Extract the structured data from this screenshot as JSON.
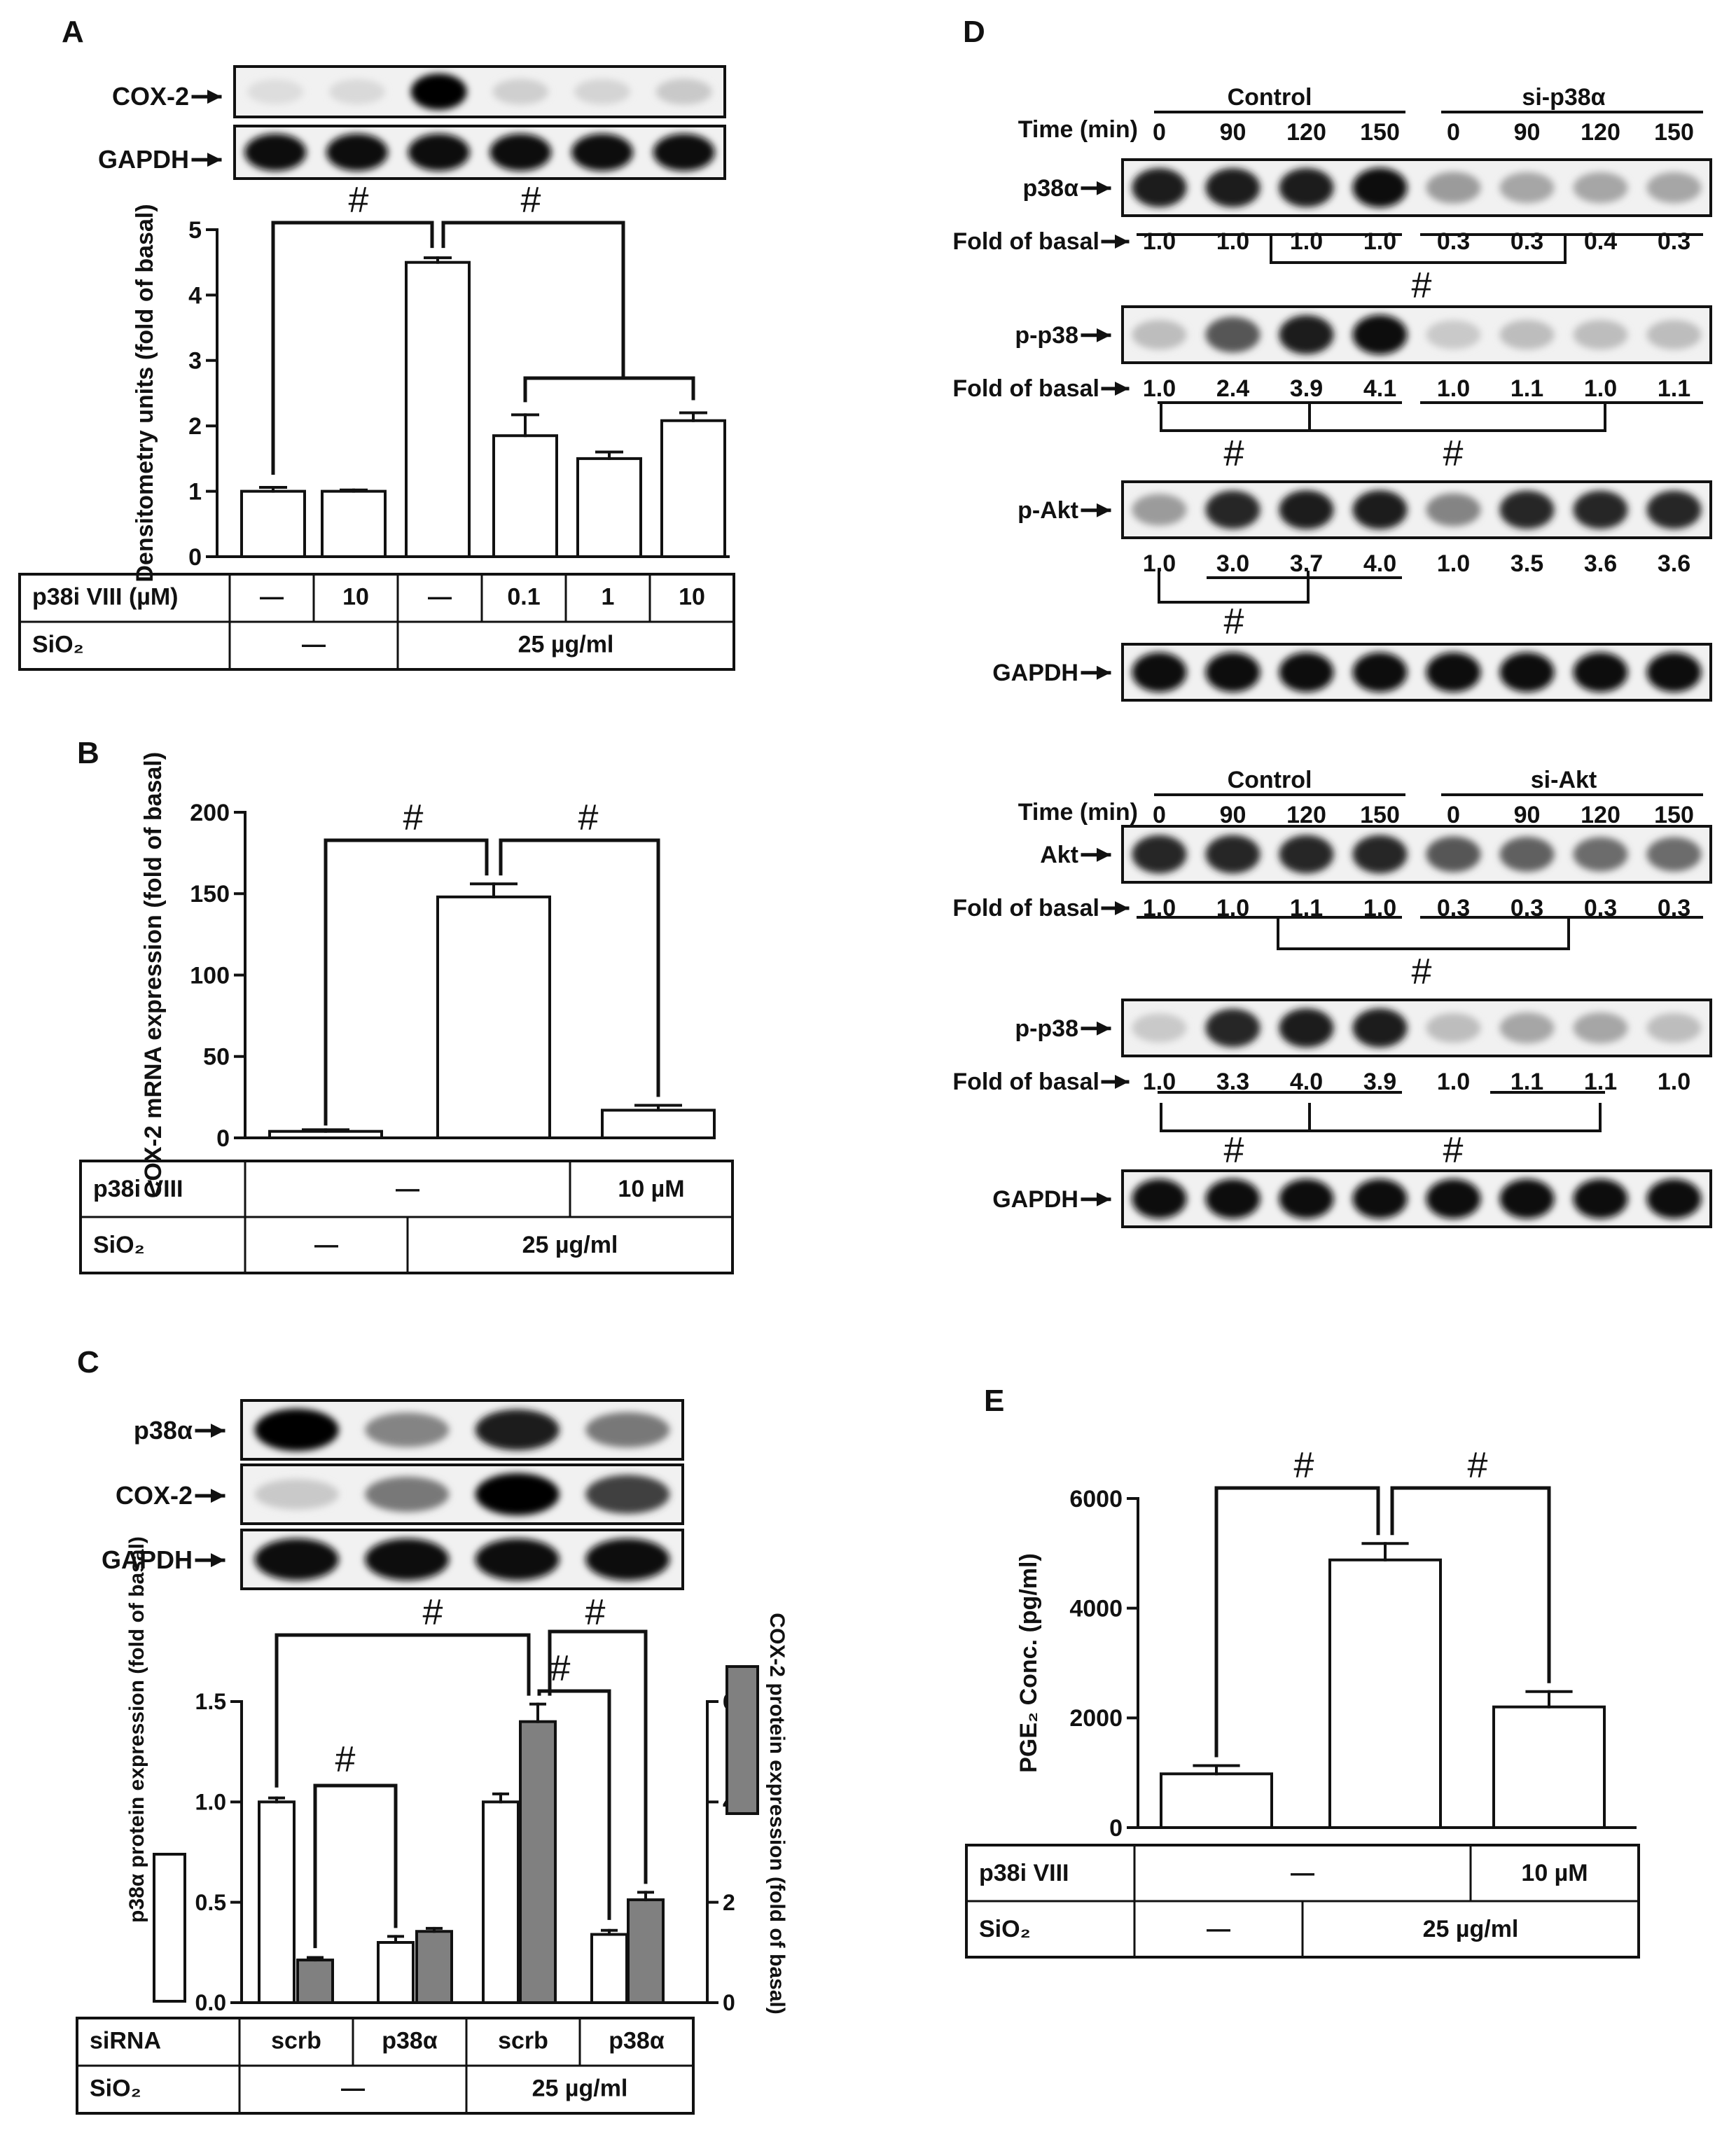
{
  "panels": [
    {
      "letter": "A"
    },
    {
      "letter": "B"
    },
    {
      "letter": "C"
    },
    {
      "letter": "D"
    },
    {
      "letter": "E"
    }
  ],
  "significance_mark": "#",
  "chart_data": [
    {
      "panel": "A",
      "type": "bar",
      "blots": [
        {
          "label": "COX-2",
          "intensity": [
            0.06,
            0.08,
            1.0,
            0.12,
            0.1,
            0.15
          ]
        },
        {
          "label": "GAPDH",
          "intensity": [
            0.95,
            0.95,
            0.95,
            0.95,
            0.95,
            0.95
          ]
        }
      ],
      "values": [
        1.0,
        1.0,
        4.5,
        1.85,
        1.5,
        2.08
      ],
      "errors": [
        0.06,
        0.02,
        0.07,
        0.32,
        0.1,
        0.12
      ],
      "ylabel": "Densitometry units (fold of basal)",
      "ylim": [
        0,
        5
      ],
      "yticks": [
        "0",
        "1",
        "2",
        "3",
        "4",
        "5"
      ],
      "table": {
        "rows": [
          {
            "label": "p38i VIII (µM)",
            "cells": [
              {
                "text": "—",
                "span": 1
              },
              {
                "text": "10",
                "span": 1
              },
              {
                "text": "—",
                "span": 1
              },
              {
                "text": "0.1",
                "span": 1
              },
              {
                "text": "1",
                "span": 1
              },
              {
                "text": "10",
                "span": 1
              }
            ]
          },
          {
            "label": "SiO₂",
            "cells": [
              {
                "text": "—",
                "span": 2
              },
              {
                "text": "25 µg/ml",
                "span": 4
              }
            ]
          }
        ]
      },
      "comparisons": [
        {
          "from": 0,
          "to": 2,
          "mark": "#"
        },
        {
          "from": 2,
          "to": [
            3,
            4,
            5
          ],
          "mark": "#"
        }
      ]
    },
    {
      "panel": "B",
      "type": "bar",
      "values": [
        4,
        148,
        17
      ],
      "errors": [
        1,
        8,
        3
      ],
      "ylabel": "COX-2 mRNA expression (fold of basal)",
      "ylim": [
        0,
        200
      ],
      "yticks": [
        "0",
        "50",
        "100",
        "150",
        "200"
      ],
      "table": {
        "rows": [
          {
            "label": "p38i VIII",
            "cells": [
              {
                "text": "—",
                "span": 2
              },
              {
                "text": "10 µM",
                "span": 1
              }
            ]
          },
          {
            "label": "SiO₂",
            "cells": [
              {
                "text": "—",
                "span": 1
              },
              {
                "text": "25 µg/ml",
                "span": 2
              }
            ]
          }
        ]
      },
      "comparisons": [
        {
          "from": 0,
          "to": 1,
          "mark": "#"
        },
        {
          "from": 1,
          "to": 2,
          "mark": "#"
        }
      ]
    },
    {
      "panel": "C",
      "type": "bar",
      "blots": [
        {
          "label": "p38α",
          "intensity": [
            1.0,
            0.45,
            0.9,
            0.5
          ]
        },
        {
          "label": "COX-2",
          "intensity": [
            0.15,
            0.5,
            1.0,
            0.75
          ]
        },
        {
          "label": "GAPDH",
          "intensity": [
            0.97,
            0.97,
            0.97,
            0.97
          ]
        }
      ],
      "series": [
        {
          "name": "p38α protein expression (fold of basal)",
          "axis": "left",
          "color": "#ffffff",
          "values": [
            1.0,
            0.3,
            1.0,
            0.34
          ],
          "errors": [
            0.02,
            0.03,
            0.04,
            0.02
          ]
        },
        {
          "name": "COX-2 protein expression (fold of basal)",
          "axis": "right",
          "color": "#808080",
          "values": [
            0.85,
            1.42,
            5.6,
            2.05
          ],
          "errors": [
            0.05,
            0.06,
            0.35,
            0.15
          ]
        }
      ],
      "ylim_left": [
        0,
        1.5
      ],
      "yticks_left": [
        "0.0",
        "0.5",
        "1.0",
        "1.5"
      ],
      "ylim_right": [
        0,
        6
      ],
      "yticks_right": [
        "0",
        "2",
        "4",
        "6"
      ],
      "table": {
        "rows": [
          {
            "label": "siRNA",
            "cells": [
              {
                "text": "scrb",
                "span": 1
              },
              {
                "text": "p38α",
                "span": 1
              },
              {
                "text": "scrb",
                "span": 1
              },
              {
                "text": "p38α",
                "span": 1
              }
            ]
          },
          {
            "label": "SiO₂",
            "cells": [
              {
                "text": "—",
                "span": 2
              },
              {
                "text": "25 µg/ml",
                "span": 2
              }
            ]
          }
        ]
      },
      "comparisons": [
        {
          "series": "COX-2",
          "from": 0,
          "to": 1,
          "mark": "#"
        },
        {
          "series": "p38α",
          "from": 0,
          "to": 2,
          "mark": "#"
        },
        {
          "series": "p38α",
          "from": 2,
          "to": 3,
          "mark": "#"
        },
        {
          "series": "COX-2",
          "from": 2,
          "to": 3,
          "mark": "#"
        }
      ]
    },
    {
      "panel": "D",
      "type": "table",
      "blocks": [
        {
          "groups": [
            "Control",
            "si-p38α"
          ],
          "time_label": "Time (min)",
          "times": [
            "0",
            "90",
            "120",
            "150",
            "0",
            "90",
            "120",
            "150"
          ],
          "rows": [
            {
              "label": "p38α",
              "intensity": [
                0.9,
                0.9,
                0.9,
                0.95,
                0.35,
                0.3,
                0.3,
                0.3
              ],
              "fold_label": "Fold of basal",
              "fold": [
                "1.0",
                "1.0",
                "1.0",
                "1.0",
                "0.3",
                "0.3",
                "0.4",
                "0.3"
              ]
            },
            {
              "label": "p-p38",
              "intensity": [
                0.2,
                0.65,
                0.9,
                0.95,
                0.15,
                0.2,
                0.2,
                0.2
              ],
              "fold_label": "Fold of basal",
              "fold": [
                "1.0",
                "2.4",
                "3.9",
                "4.1",
                "1.0",
                "1.1",
                "1.0",
                "1.1"
              ]
            },
            {
              "label": "p-Akt",
              "intensity": [
                0.35,
                0.85,
                0.9,
                0.9,
                0.45,
                0.85,
                0.85,
                0.85
              ],
              "fold": [
                "1.0",
                "3.0",
                "3.7",
                "4.0",
                "1.0",
                "3.5",
                "3.6",
                "3.6"
              ]
            },
            {
              "label": "GAPDH",
              "intensity": [
                0.95,
                0.95,
                0.95,
                0.95,
                0.95,
                0.95,
                0.95,
                0.95
              ]
            }
          ]
        },
        {
          "groups": [
            "Control",
            "si-Akt"
          ],
          "time_label": "Time (min)",
          "times": [
            "0",
            "90",
            "120",
            "150",
            "0",
            "90",
            "120",
            "150"
          ],
          "rows": [
            {
              "label": "Akt",
              "intensity": [
                0.85,
                0.85,
                0.85,
                0.85,
                0.65,
                0.6,
                0.55,
                0.55
              ],
              "fold_label": "Fold of basal",
              "fold": [
                "1.0",
                "1.0",
                "1.1",
                "1.0",
                "0.3",
                "0.3",
                "0.3",
                "0.3"
              ]
            },
            {
              "label": "p-p38",
              "intensity": [
                0.15,
                0.85,
                0.9,
                0.9,
                0.2,
                0.3,
                0.3,
                0.2
              ],
              "fold_label": "Fold of basal",
              "fold": [
                "1.0",
                "3.3",
                "4.0",
                "3.9",
                "1.0",
                "1.1",
                "1.1",
                "1.0"
              ]
            },
            {
              "label": "GAPDH",
              "intensity": [
                0.95,
                0.95,
                0.95,
                0.95,
                0.95,
                0.95,
                0.95,
                0.95
              ]
            }
          ]
        }
      ]
    },
    {
      "panel": "E",
      "type": "bar",
      "values": [
        980,
        4880,
        2200
      ],
      "errors": [
        150,
        300,
        280
      ],
      "ylabel": "PGE₂ Conc. (pg/ml)",
      "ylim": [
        0,
        6000
      ],
      "yticks": [
        "0",
        "2000",
        "4000",
        "6000"
      ],
      "table": {
        "rows": [
          {
            "label": "p38i VIII",
            "cells": [
              {
                "text": "—",
                "span": 2
              },
              {
                "text": "10 µM",
                "span": 1
              }
            ]
          },
          {
            "label": "SiO₂",
            "cells": [
              {
                "text": "—",
                "span": 1
              },
              {
                "text": "25 µg/ml",
                "span": 2
              }
            ]
          }
        ]
      },
      "comparisons": [
        {
          "from": 0,
          "to": 1,
          "mark": "#"
        },
        {
          "from": 1,
          "to": 2,
          "mark": "#"
        }
      ]
    }
  ]
}
